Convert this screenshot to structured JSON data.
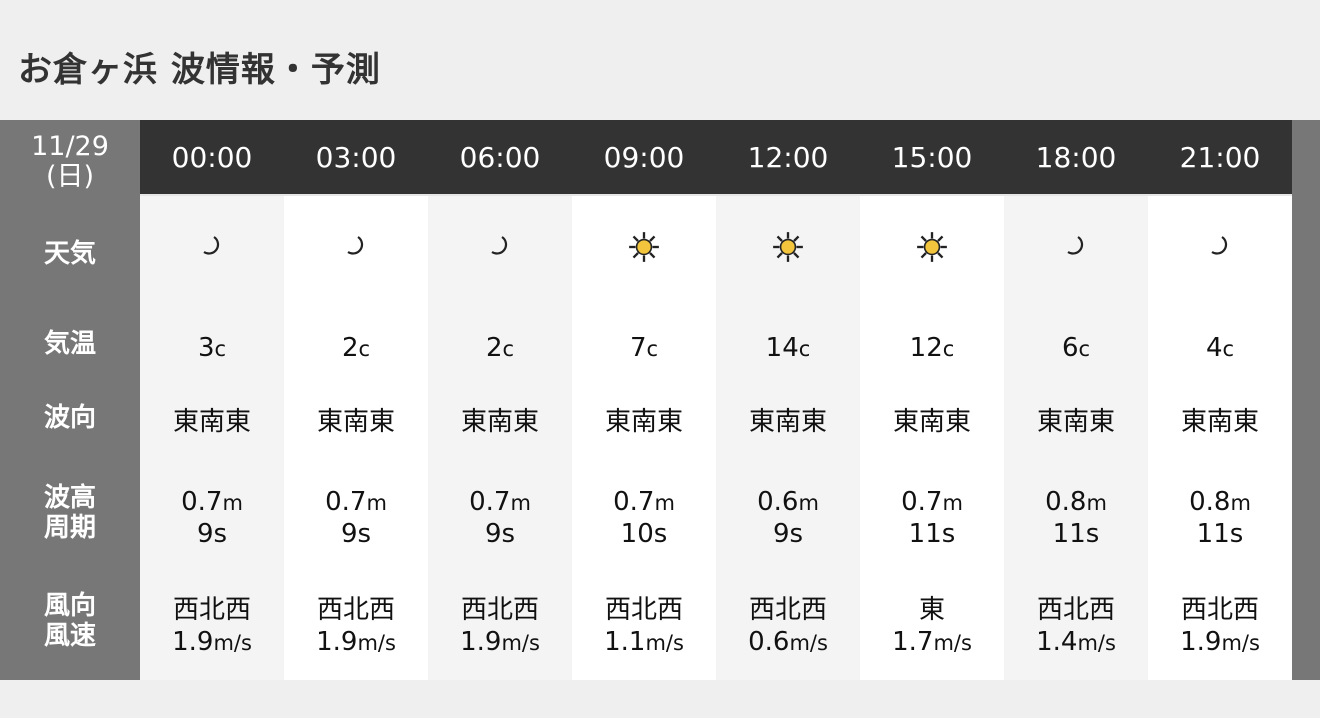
{
  "title": "お倉ヶ浜 波情報・予測",
  "date": {
    "day": "11/29",
    "weekday": "(日)"
  },
  "row_labels": {
    "weather": "天気",
    "temp": "気温",
    "wave_dir": "波向",
    "wave_height": "波高",
    "period": "周期",
    "wind_dir": "風向",
    "wind_speed": "風速"
  },
  "colors": {
    "header": "#333333",
    "label_col": "#777777",
    "sun": "#f2c53d"
  },
  "columns": [
    {
      "time": "00:00",
      "weather": "moon-icon",
      "temp": "3",
      "temp_unit": "c",
      "wave_dir": "東南東",
      "wave_h": "0.7",
      "wave_unit": "m",
      "period": "9s",
      "wind_dir": "西北西",
      "wind_speed": "1.9",
      "wind_unit": "m/s"
    },
    {
      "time": "03:00",
      "weather": "moon-icon",
      "temp": "2",
      "temp_unit": "c",
      "wave_dir": "東南東",
      "wave_h": "0.7",
      "wave_unit": "m",
      "period": "9s",
      "wind_dir": "西北西",
      "wind_speed": "1.9",
      "wind_unit": "m/s"
    },
    {
      "time": "06:00",
      "weather": "moon-icon",
      "temp": "2",
      "temp_unit": "c",
      "wave_dir": "東南東",
      "wave_h": "0.7",
      "wave_unit": "m",
      "period": "9s",
      "wind_dir": "西北西",
      "wind_speed": "1.9",
      "wind_unit": "m/s"
    },
    {
      "time": "09:00",
      "weather": "sun-icon",
      "temp": "7",
      "temp_unit": "c",
      "wave_dir": "東南東",
      "wave_h": "0.7",
      "wave_unit": "m",
      "period": "10s",
      "wind_dir": "西北西",
      "wind_speed": "1.1",
      "wind_unit": "m/s"
    },
    {
      "time": "12:00",
      "weather": "sun-icon",
      "temp": "14",
      "temp_unit": "c",
      "wave_dir": "東南東",
      "wave_h": "0.6",
      "wave_unit": "m",
      "period": "9s",
      "wind_dir": "西北西",
      "wind_speed": "0.6",
      "wind_unit": "m/s"
    },
    {
      "time": "15:00",
      "weather": "sun-icon",
      "temp": "12",
      "temp_unit": "c",
      "wave_dir": "東南東",
      "wave_h": "0.7",
      "wave_unit": "m",
      "period": "11s",
      "wind_dir": "東",
      "wind_speed": "1.7",
      "wind_unit": "m/s"
    },
    {
      "time": "18:00",
      "weather": "moon-icon",
      "temp": "6",
      "temp_unit": "c",
      "wave_dir": "東南東",
      "wave_h": "0.8",
      "wave_unit": "m",
      "period": "11s",
      "wind_dir": "西北西",
      "wind_speed": "1.4",
      "wind_unit": "m/s"
    },
    {
      "time": "21:00",
      "weather": "moon-icon",
      "temp": "4",
      "temp_unit": "c",
      "wave_dir": "東南東",
      "wave_h": "0.8",
      "wave_unit": "m",
      "period": "11s",
      "wind_dir": "西北西",
      "wind_speed": "1.9",
      "wind_unit": "m/s"
    }
  ]
}
